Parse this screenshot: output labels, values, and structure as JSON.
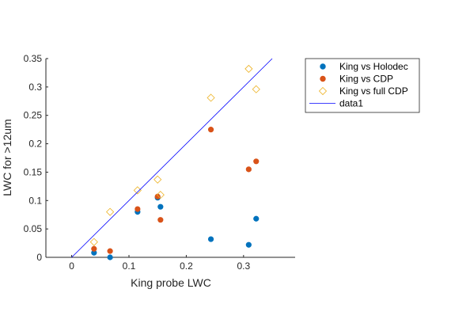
{
  "chart_data": {
    "type": "scatter",
    "xlabel": "King probe LWC",
    "ylabel": "LWC for >12um",
    "xlim": [
      -0.045,
      0.39
    ],
    "ylim": [
      0,
      0.35
    ],
    "x_ticks": [
      0,
      0.1,
      0.2,
      0.3
    ],
    "x_tick_labels": [
      "0",
      "0.1",
      "0.2",
      "0.3"
    ],
    "y_ticks": [
      0,
      0.05,
      0.1,
      0.15,
      0.2,
      0.25,
      0.3,
      0.35
    ],
    "y_tick_labels": [
      "0",
      "0.05",
      "0.1",
      "0.15",
      "0.2",
      "0.25",
      "0.3",
      "0.35"
    ],
    "grid": false,
    "legend_position": "top-right (outside)",
    "series": [
      {
        "name": "King vs Holodec",
        "marker": "filled-circle",
        "color": "#0072BD",
        "points": [
          [
            0.039,
            0.008
          ],
          [
            0.067,
            0.0
          ],
          [
            0.115,
            0.08
          ],
          [
            0.15,
            0.105
          ],
          [
            0.155,
            0.089
          ],
          [
            0.243,
            0.032
          ],
          [
            0.309,
            0.022
          ],
          [
            0.322,
            0.068
          ]
        ]
      },
      {
        "name": "King vs CDP",
        "marker": "filled-circle",
        "color": "#D95319",
        "points": [
          [
            0.039,
            0.015
          ],
          [
            0.067,
            0.011
          ],
          [
            0.115,
            0.085
          ],
          [
            0.15,
            0.107
          ],
          [
            0.155,
            0.066
          ],
          [
            0.243,
            0.225
          ],
          [
            0.309,
            0.155
          ],
          [
            0.322,
            0.169
          ]
        ]
      },
      {
        "name": "King vs full CDP",
        "marker": "open-diamond",
        "color": "#EDB120",
        "points": [
          [
            0.039,
            0.027
          ],
          [
            0.067,
            0.08
          ],
          [
            0.115,
            0.118
          ],
          [
            0.15,
            0.137
          ],
          [
            0.155,
            0.11
          ],
          [
            0.243,
            0.281
          ],
          [
            0.309,
            0.332
          ],
          [
            0.322,
            0.296
          ]
        ]
      },
      {
        "name": "data1",
        "marker": "line",
        "color": "#0000FF",
        "points": [
          [
            0,
            0
          ],
          [
            0.35,
            0.35
          ]
        ]
      }
    ]
  }
}
